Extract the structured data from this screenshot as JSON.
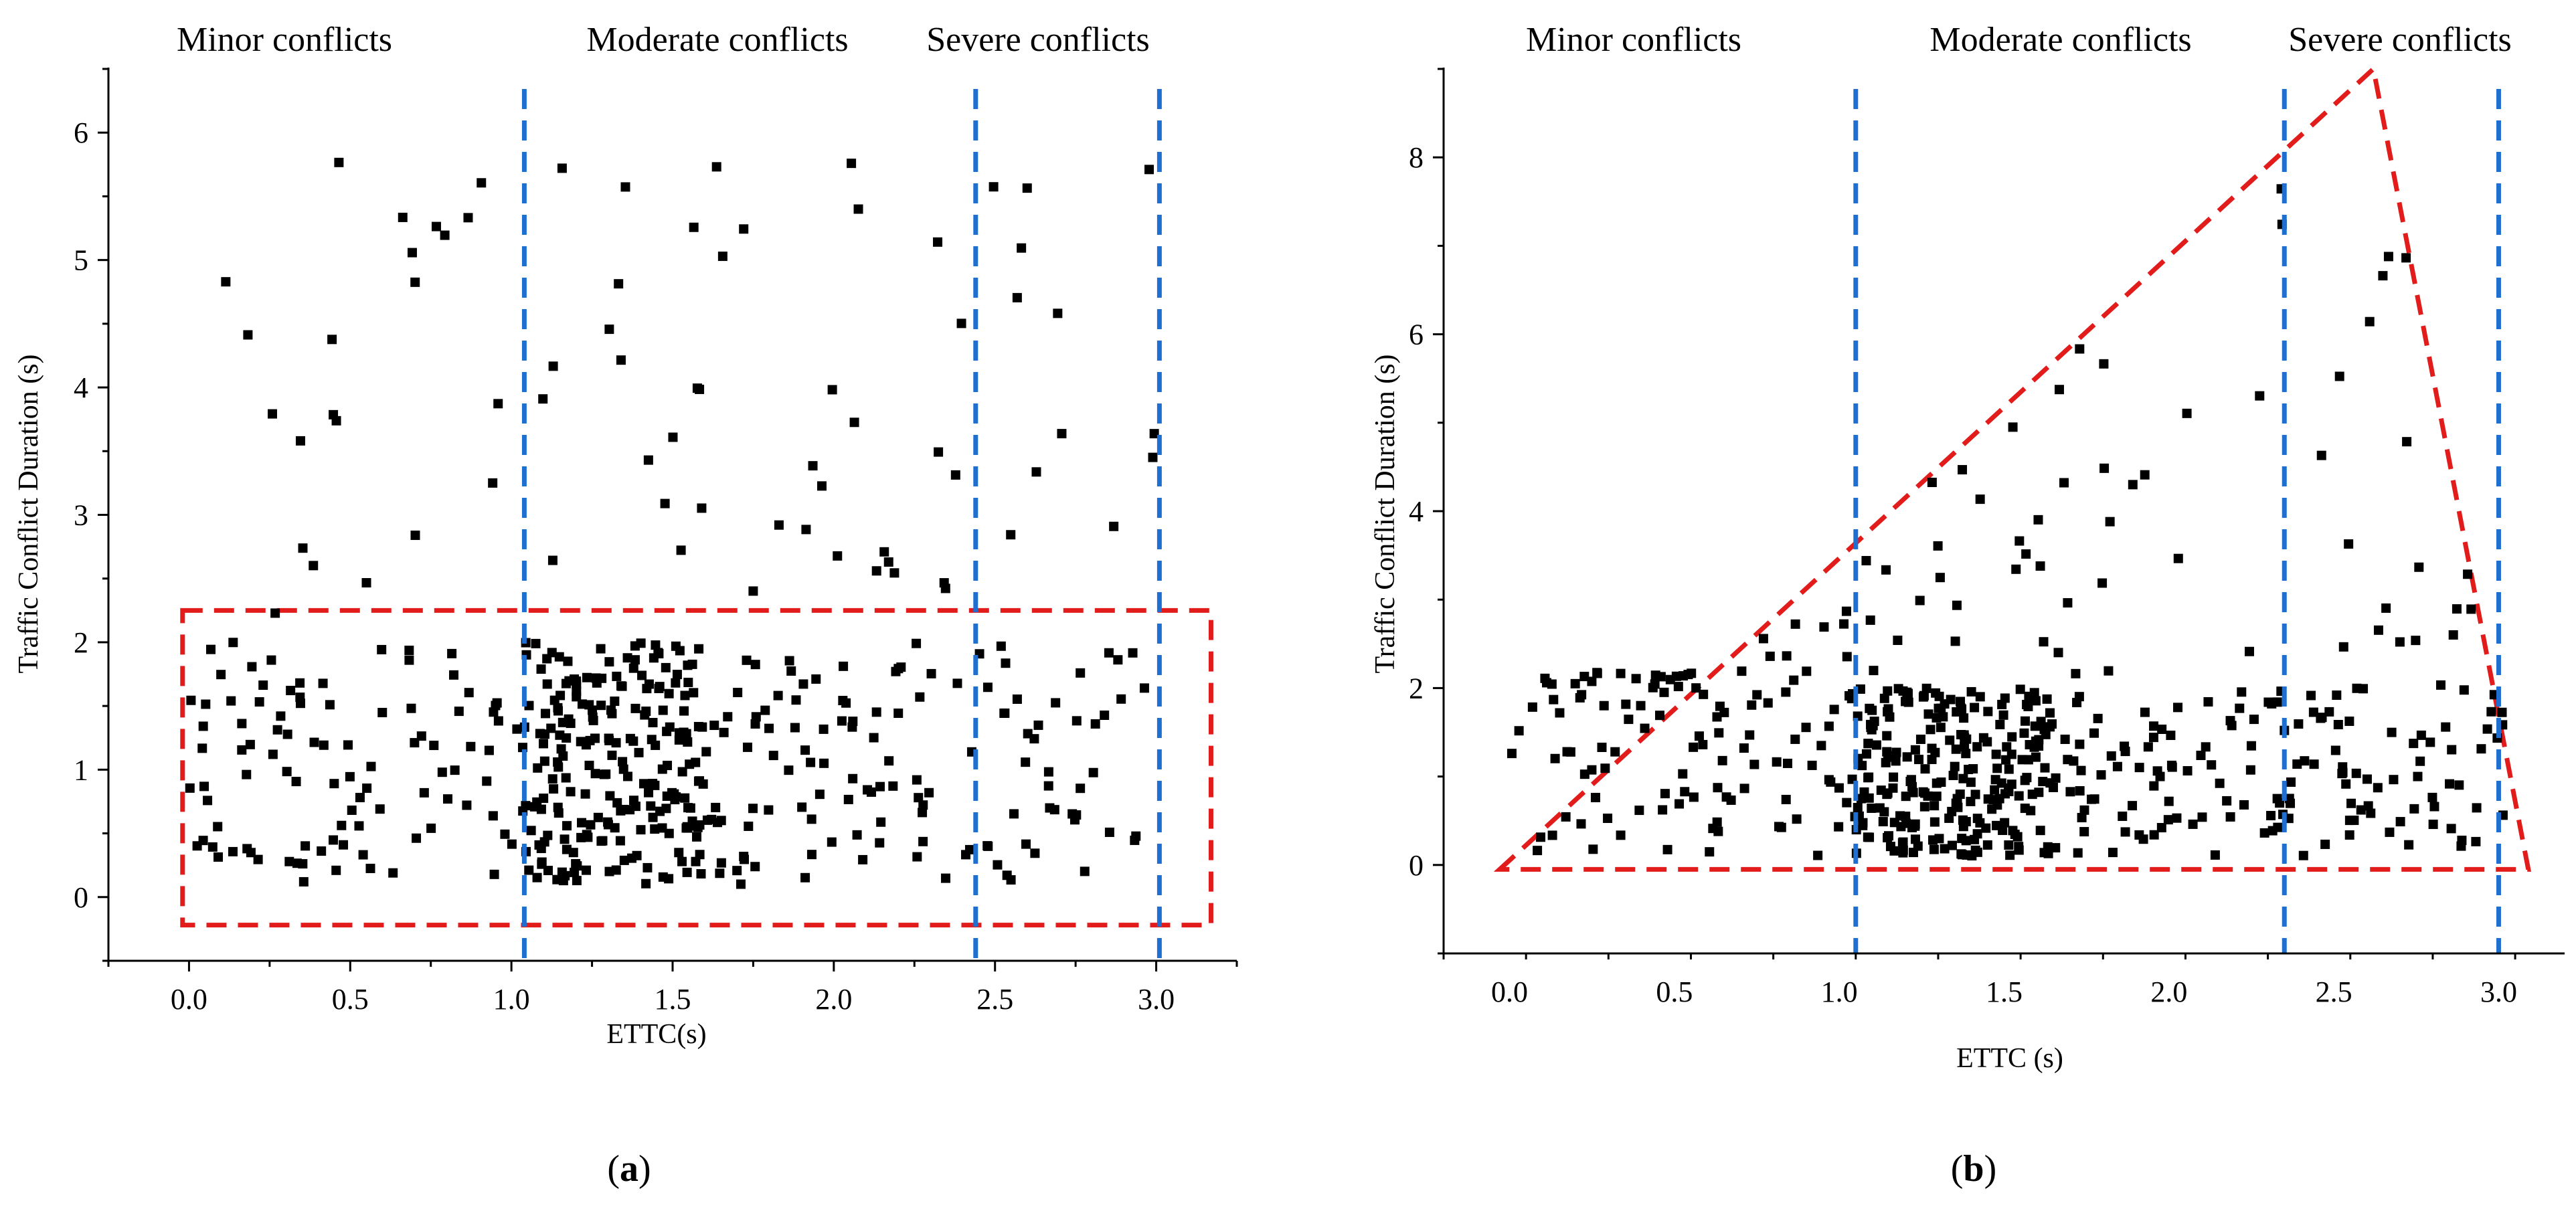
{
  "chart_data": [
    {
      "type": "scatter",
      "panel_label": "(a)",
      "panel_letter": "a",
      "xlabel": "ETTC(s)",
      "ylabel": "Traffic Conflict Duration (s)",
      "xlim": [
        -0.25,
        3.25
      ],
      "ylim": [
        -0.5,
        6.5
      ],
      "xticks": [
        0.0,
        0.5,
        1.0,
        1.5,
        2.0,
        2.5,
        3.0
      ],
      "xtick_labels": [
        "0.0",
        "0.5",
        "1.0",
        "1.5",
        "2.0",
        "2.5",
        "3.0"
      ],
      "yticks": [
        0,
        1,
        2,
        3,
        4,
        5,
        6
      ],
      "ytick_labels": [
        "0",
        "1",
        "2",
        "3",
        "4",
        "5",
        "6"
      ],
      "region_labels": [
        "Minor conflicts",
        "Moderate conflicts",
        "Severe conflicts"
      ],
      "dividers_x": [
        1.04,
        2.44,
        3.01
      ],
      "divider_color": "#1f6fd1",
      "highlight_color": "#e21b1b",
      "highlight_rect": {
        "x0": -0.02,
        "x1": 3.17,
        "y0": -0.22,
        "y1": 2.25
      },
      "point_count": 520,
      "point_color": "#000000",
      "points": []
    },
    {
      "type": "scatter",
      "panel_label": "(b)",
      "panel_letter": "b",
      "xlabel": "ETTC (s)",
      "ylabel": "Traffic Conflict Duration (s)",
      "xlim": [
        -0.2,
        3.2
      ],
      "ylim": [
        -1,
        9
      ],
      "xticks": [
        0.0,
        0.5,
        1.0,
        1.5,
        2.0,
        2.5,
        3.0
      ],
      "xtick_labels": [
        "0.0",
        "0.5",
        "1.0",
        "1.5",
        "2.0",
        "2.5",
        "3.0"
      ],
      "yticks": [
        0,
        2,
        4,
        6,
        8
      ],
      "ytick_labels": [
        "0",
        "2",
        "4",
        "6",
        "8"
      ],
      "region_labels": [
        "Minor conflicts",
        "Moderate conflicts",
        "Severe conflicts"
      ],
      "dividers_x": [
        1.05,
        2.35,
        3.0
      ],
      "divider_color": "#1f6fd1",
      "highlight_color": "#e21b1b",
      "highlight_triangle": [
        [
          -0.03,
          -0.05
        ],
        [
          2.62,
          9.0
        ],
        [
          3.09,
          -0.05
        ]
      ],
      "point_count": 560,
      "point_color": "#000000",
      "points": []
    }
  ]
}
